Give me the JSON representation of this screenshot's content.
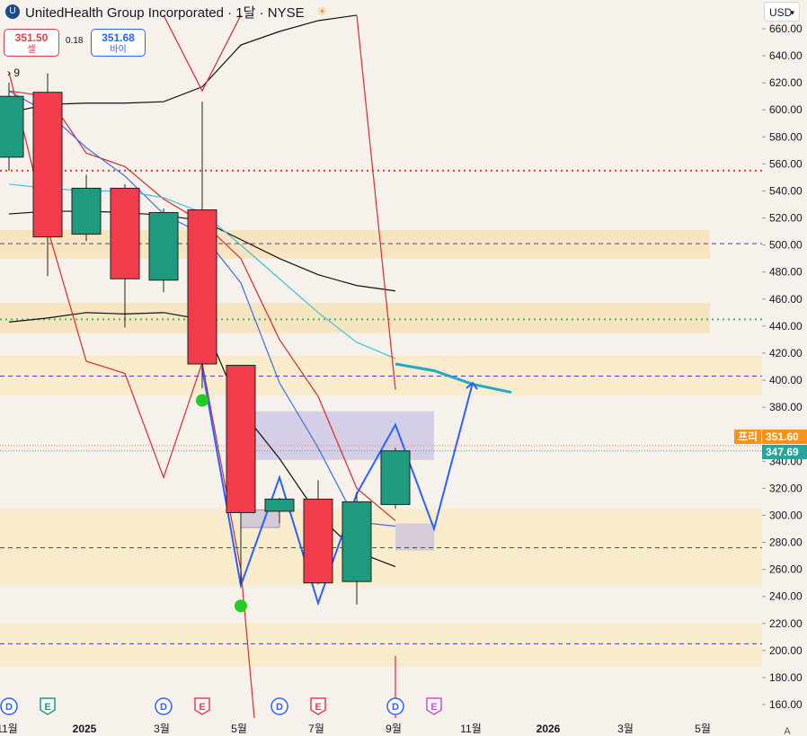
{
  "header": {
    "logo": "unitedhealth-logo",
    "title": "UnitedHealth Group Incorporated · 1달 · NYSE",
    "currency": "USD"
  },
  "trade": {
    "sell_price": "351.50",
    "sell_label": "셀",
    "spread": "0.18",
    "buy_price": "351.68",
    "buy_label": "바이"
  },
  "indicator_count": "9",
  "price_tags": {
    "pre_label": "프리",
    "pre_value": "351.60",
    "last_value": "347.69",
    "pre_color": "#f7931a",
    "last_color": "#26a69a"
  },
  "chart_data": {
    "type": "candlestick",
    "timeframe": "1M",
    "ylim": [
      150,
      670
    ],
    "y_ticks": [
      160,
      180,
      200,
      220,
      240,
      260,
      280,
      300,
      320,
      340,
      380,
      400,
      420,
      440,
      460,
      480,
      500,
      520,
      540,
      560,
      580,
      600,
      620,
      640,
      660
    ],
    "x_tick_labels": [
      "11월",
      "2025",
      "3월",
      "5월",
      "7월",
      "9월",
      "11월",
      "2026",
      "3월",
      "5월"
    ],
    "months": [
      "2024-11",
      "2024-12",
      "2025-01",
      "2025-02",
      "2025-03",
      "2025-04",
      "2025-05",
      "2025-06",
      "2025-07",
      "2025-08",
      "2025-09",
      "2025-10",
      "2025-11",
      "2025-12",
      "2026-01",
      "2026-02",
      "2026-03",
      "2026-04",
      "2026-05",
      "2026-06"
    ],
    "candles": [
      {
        "t": "2024-11",
        "o": 565,
        "h": 620,
        "l": 555,
        "c": 610
      },
      {
        "t": "2024-12",
        "o": 613,
        "h": 627,
        "l": 477,
        "c": 506
      },
      {
        "t": "2025-01",
        "o": 508,
        "h": 552,
        "l": 503,
        "c": 542
      },
      {
        "t": "2025-02",
        "o": 542,
        "h": 545,
        "l": 439,
        "c": 475
      },
      {
        "t": "2025-03",
        "o": 474,
        "h": 527,
        "l": 465,
        "c": 524
      },
      {
        "t": "2025-04",
        "o": 526,
        "h": 606,
        "l": 394,
        "c": 412
      },
      {
        "t": "2025-05",
        "o": 411,
        "h": 411,
        "l": 249,
        "c": 302
      },
      {
        "t": "2025-06",
        "o": 303,
        "h": 313,
        "l": 294,
        "c": 312
      },
      {
        "t": "2025-07",
        "o": 312,
        "h": 326,
        "l": 249,
        "c": 250
      },
      {
        "t": "2025-08",
        "o": 251,
        "h": 317,
        "l": 234,
        "c": 310
      },
      {
        "t": "2025-09",
        "o": 308,
        "h": 350,
        "l": 305,
        "c": 347.69
      }
    ],
    "zones": [
      {
        "low": 490,
        "high": 511,
        "color": "#f7e3bb"
      },
      {
        "low": 435,
        "high": 457,
        "color": "#f7e3bb"
      },
      {
        "low": 389,
        "high": 418,
        "color": "#f8ebc7"
      },
      {
        "low": 248,
        "high": 305,
        "color": "#f8ebc7"
      },
      {
        "low": 188,
        "high": 220,
        "color": "#f8ebc7"
      }
    ],
    "horizontal_levels": [
      {
        "y": 555,
        "color": "#e53935",
        "style": "dotted"
      },
      {
        "y": 445,
        "color": "#27c46b",
        "style": "dotted"
      },
      {
        "y": 501,
        "color": "#3f3fbf",
        "style": "dashed"
      },
      {
        "y": 403,
        "color": "#3f3fbf",
        "style": "dashed"
      },
      {
        "y": 276,
        "color": "#3f3fbf",
        "style": "dashed"
      },
      {
        "y": 205,
        "color": "#3f3fbf",
        "style": "dashed"
      }
    ],
    "rectangles": [
      {
        "from": "2025-05",
        "to": "2025-10",
        "low": 341,
        "high": 377,
        "color": "#b9b0e3"
      },
      {
        "from": "2025-09",
        "to": "2025-10",
        "low": 274,
        "high": 294,
        "color": "#b9b0e3"
      },
      {
        "from": "2025-05",
        "to": "2025-06",
        "low": 291,
        "high": 304,
        "color": "#b9b0e3"
      }
    ],
    "projection_path": {
      "color": "#2962ff",
      "points": [
        [
          "2025-04",
          409
        ],
        [
          "2025-05",
          248
        ],
        [
          "2025-06",
          328
        ],
        [
          "2025-07",
          235
        ],
        [
          "2025-08",
          316
        ],
        [
          "2025-09",
          367
        ],
        [
          "2025-10",
          290
        ],
        [
          "2025-11",
          398
        ]
      ]
    },
    "ma_lines": [
      {
        "color": "#111111",
        "points": [
          [
            "2024-11",
            523
          ],
          [
            "2024-12",
            525
          ],
          [
            "2025-01",
            525
          ],
          [
            "2025-02",
            524
          ],
          [
            "2025-03",
            522
          ],
          [
            "2025-04",
            518
          ],
          [
            "2025-05",
            504
          ],
          [
            "2025-06",
            490
          ],
          [
            "2025-07",
            478
          ],
          [
            "2025-08",
            470
          ],
          [
            "2025-09",
            466
          ]
        ]
      },
      {
        "color": "#111111",
        "points": [
          [
            "2024-11",
            443
          ],
          [
            "2024-12",
            446
          ],
          [
            "2025-01",
            450
          ],
          [
            "2025-02",
            449
          ],
          [
            "2025-03",
            450
          ],
          [
            "2025-04",
            445
          ],
          [
            "2025-05",
            378
          ],
          [
            "2025-06",
            342
          ],
          [
            "2025-07",
            300
          ],
          [
            "2025-08",
            273
          ],
          [
            "2025-09",
            262
          ]
        ]
      },
      {
        "color": "#111111",
        "points": [
          [
            "2024-11",
            598
          ],
          [
            "2024-12",
            604
          ],
          [
            "2025-01",
            605
          ],
          [
            "2025-02",
            605
          ],
          [
            "2025-03",
            606
          ],
          [
            "2025-04",
            617
          ],
          [
            "2025-05",
            648
          ],
          [
            "2025-06",
            658
          ],
          [
            "2025-07",
            666
          ],
          [
            "2025-08",
            670
          ]
        ]
      },
      {
        "color": "#d32f2f",
        "points": [
          [
            "2024-11",
            614
          ],
          [
            "2024-12",
            610
          ],
          [
            "2025-01",
            568
          ],
          [
            "2025-02",
            558
          ],
          [
            "2025-03",
            534
          ],
          [
            "2025-04",
            517
          ],
          [
            "2025-05",
            490
          ],
          [
            "2025-06",
            430
          ],
          [
            "2025-07",
            388
          ],
          [
            "2025-08",
            320
          ],
          [
            "2025-09",
            296
          ]
        ]
      },
      {
        "color": "#3b6fe0",
        "points": [
          [
            "2024-11",
            614
          ],
          [
            "2024-12",
            598
          ],
          [
            "2025-01",
            572
          ],
          [
            "2025-02",
            551
          ],
          [
            "2025-03",
            523
          ],
          [
            "2025-04",
            508
          ],
          [
            "2025-05",
            472
          ],
          [
            "2025-06",
            398
          ],
          [
            "2025-07",
            350
          ],
          [
            "2025-08",
            295
          ],
          [
            "2025-09",
            292
          ]
        ]
      },
      {
        "color": "#3fc3d9",
        "points": [
          [
            "2024-11",
            545
          ],
          [
            "2024-12",
            542
          ],
          [
            "2025-01",
            540
          ],
          [
            "2025-02",
            540
          ],
          [
            "2025-03",
            535
          ],
          [
            "2025-04",
            524
          ],
          [
            "2025-05",
            500
          ],
          [
            "2025-06",
            475
          ],
          [
            "2025-07",
            450
          ],
          [
            "2025-08",
            428
          ],
          [
            "2025-09",
            416
          ]
        ]
      },
      {
        "color": "#22a9c9",
        "points": [
          [
            "2025-09",
            412
          ],
          [
            "2025-10",
            407
          ],
          [
            "2025-11",
            397
          ],
          [
            "2025-12",
            391
          ]
        ]
      }
    ],
    "zigzag_lines": [
      {
        "color": "#d32f2f",
        "points": [
          [
            "2024-11",
            628
          ],
          [
            "2024-12",
            512
          ],
          [
            "2025-01",
            414
          ],
          [
            "2025-02",
            405
          ],
          [
            "2025-03",
            328
          ],
          [
            "2025-04",
            413
          ],
          [
            "2025-05",
            260
          ],
          [
            "2025-05b",
            150
          ]
        ]
      },
      {
        "color": "#d32f2f",
        "points": [
          [
            "2025-03",
            670
          ],
          [
            "2025-04",
            614
          ],
          [
            "2025-05",
            670
          ]
        ]
      },
      {
        "color": "#d32f2f",
        "points": [
          [
            "2025-08",
            670
          ],
          [
            "2025-09",
            393
          ]
        ]
      },
      {
        "color": "#d32f2f",
        "points": [
          [
            "2025-09",
            150
          ],
          [
            "2025-09",
            196
          ]
        ]
      }
    ],
    "signal_dots": [
      {
        "t": "2025-04",
        "y": 385,
        "color": "#22cc22"
      },
      {
        "t": "2025-05",
        "y": 233,
        "color": "#22cc22"
      }
    ],
    "event_markers": [
      {
        "t": "2024-11",
        "label": "D",
        "kind": "dividend"
      },
      {
        "t": "2024-12",
        "label": "E",
        "kind": "earnings-past"
      },
      {
        "t": "2025-03",
        "label": "D",
        "kind": "dividend"
      },
      {
        "t": "2025-04",
        "label": "E",
        "kind": "earnings-red"
      },
      {
        "t": "2025-06",
        "label": "D",
        "kind": "dividend"
      },
      {
        "t": "2025-07",
        "label": "E",
        "kind": "earnings-red"
      },
      {
        "t": "2025-09",
        "label": "D",
        "kind": "dividend"
      },
      {
        "t": "2025-10",
        "label": "E",
        "kind": "earnings-future"
      }
    ],
    "axis_corner": "A"
  }
}
